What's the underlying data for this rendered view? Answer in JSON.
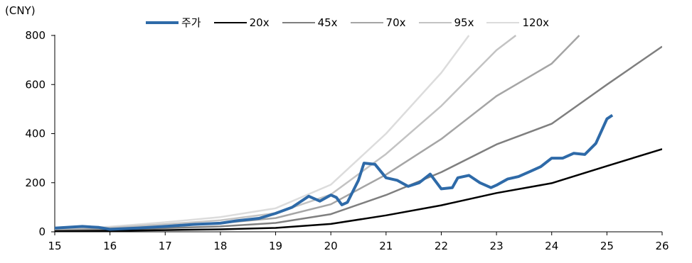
{
  "chart_data": {
    "type": "line",
    "unit_label": "(CNY)",
    "xlim": [
      15,
      26
    ],
    "ylim": [
      0,
      800
    ],
    "x_ticks": [
      "15",
      "16",
      "17",
      "18",
      "19",
      "20",
      "21",
      "22",
      "23",
      "24",
      "25",
      "26"
    ],
    "y_ticks": [
      "0",
      "200",
      "400",
      "600",
      "800"
    ],
    "legend_position": "top-center",
    "grid": false,
    "series": [
      {
        "name": "주가",
        "color": "#2e6aa8",
        "width": 4,
        "points": [
          [
            15,
            15
          ],
          [
            15.5,
            22
          ],
          [
            15.8,
            18
          ],
          [
            16,
            10
          ],
          [
            16.5,
            15
          ],
          [
            17,
            22
          ],
          [
            17.5,
            30
          ],
          [
            18,
            35
          ],
          [
            18.3,
            45
          ],
          [
            18.7,
            55
          ],
          [
            19,
            75
          ],
          [
            19.3,
            100
          ],
          [
            19.6,
            145
          ],
          [
            19.8,
            125
          ],
          [
            20.0,
            150
          ],
          [
            20.1,
            140
          ],
          [
            20.2,
            110
          ],
          [
            20.3,
            120
          ],
          [
            20.5,
            210
          ],
          [
            20.6,
            280
          ],
          [
            20.8,
            275
          ],
          [
            21,
            220
          ],
          [
            21.2,
            210
          ],
          [
            21.4,
            185
          ],
          [
            21.6,
            200
          ],
          [
            21.8,
            235
          ],
          [
            22,
            175
          ],
          [
            22.2,
            180
          ],
          [
            22.3,
            220
          ],
          [
            22.5,
            230
          ],
          [
            22.7,
            200
          ],
          [
            22.9,
            180
          ],
          [
            23,
            190
          ],
          [
            23.2,
            215
          ],
          [
            23.4,
            225
          ],
          [
            23.6,
            245
          ],
          [
            23.8,
            265
          ],
          [
            24,
            300
          ],
          [
            24.2,
            300
          ],
          [
            24.4,
            320
          ],
          [
            24.6,
            315
          ],
          [
            24.8,
            360
          ],
          [
            25.0,
            460
          ],
          [
            25.1,
            475
          ]
        ]
      },
      {
        "name": "20x",
        "color": "#000000",
        "width": 2.5,
        "points": [
          [
            15,
            2
          ],
          [
            16,
            4
          ],
          [
            17,
            7
          ],
          [
            18,
            10
          ],
          [
            19,
            16
          ],
          [
            20,
            32
          ],
          [
            21,
            67
          ],
          [
            22,
            108
          ],
          [
            23,
            158
          ],
          [
            24,
            198
          ],
          [
            25,
            268
          ],
          [
            26,
            337
          ]
        ]
      },
      {
        "name": "45x",
        "color": "#7f7f7f",
        "width": 2.5,
        "points": [
          [
            15,
            4
          ],
          [
            16,
            8
          ],
          [
            17,
            15
          ],
          [
            18,
            22
          ],
          [
            19,
            36
          ],
          [
            20,
            72
          ],
          [
            21,
            150
          ],
          [
            22,
            243
          ],
          [
            23,
            356
          ],
          [
            24,
            440
          ],
          [
            25,
            600
          ],
          [
            26,
            755
          ]
        ]
      },
      {
        "name": "70x",
        "color": "#a5a5a5",
        "width": 2.5,
        "points": [
          [
            15,
            6
          ],
          [
            16,
            13
          ],
          [
            17,
            23
          ],
          [
            18,
            35
          ],
          [
            19,
            56
          ],
          [
            20,
            112
          ],
          [
            21,
            233
          ],
          [
            22,
            378
          ],
          [
            23,
            553
          ],
          [
            24,
            685
          ],
          [
            24.5,
            800
          ]
        ]
      },
      {
        "name": "95x",
        "color": "#c3c3c3",
        "width": 2.5,
        "points": [
          [
            15,
            8
          ],
          [
            16,
            17
          ],
          [
            17,
            31
          ],
          [
            18,
            47
          ],
          [
            19,
            76
          ],
          [
            20,
            152
          ],
          [
            21,
            317
          ],
          [
            22,
            513
          ],
          [
            23,
            740
          ],
          [
            23.35,
            800
          ]
        ]
      },
      {
        "name": "120x",
        "color": "#dcdcdc",
        "width": 2.5,
        "points": [
          [
            15,
            10
          ],
          [
            16,
            21
          ],
          [
            17,
            39
          ],
          [
            18,
            60
          ],
          [
            19,
            96
          ],
          [
            20,
            192
          ],
          [
            21,
            400
          ],
          [
            22,
            648
          ],
          [
            22.5,
            800
          ]
        ]
      }
    ]
  }
}
